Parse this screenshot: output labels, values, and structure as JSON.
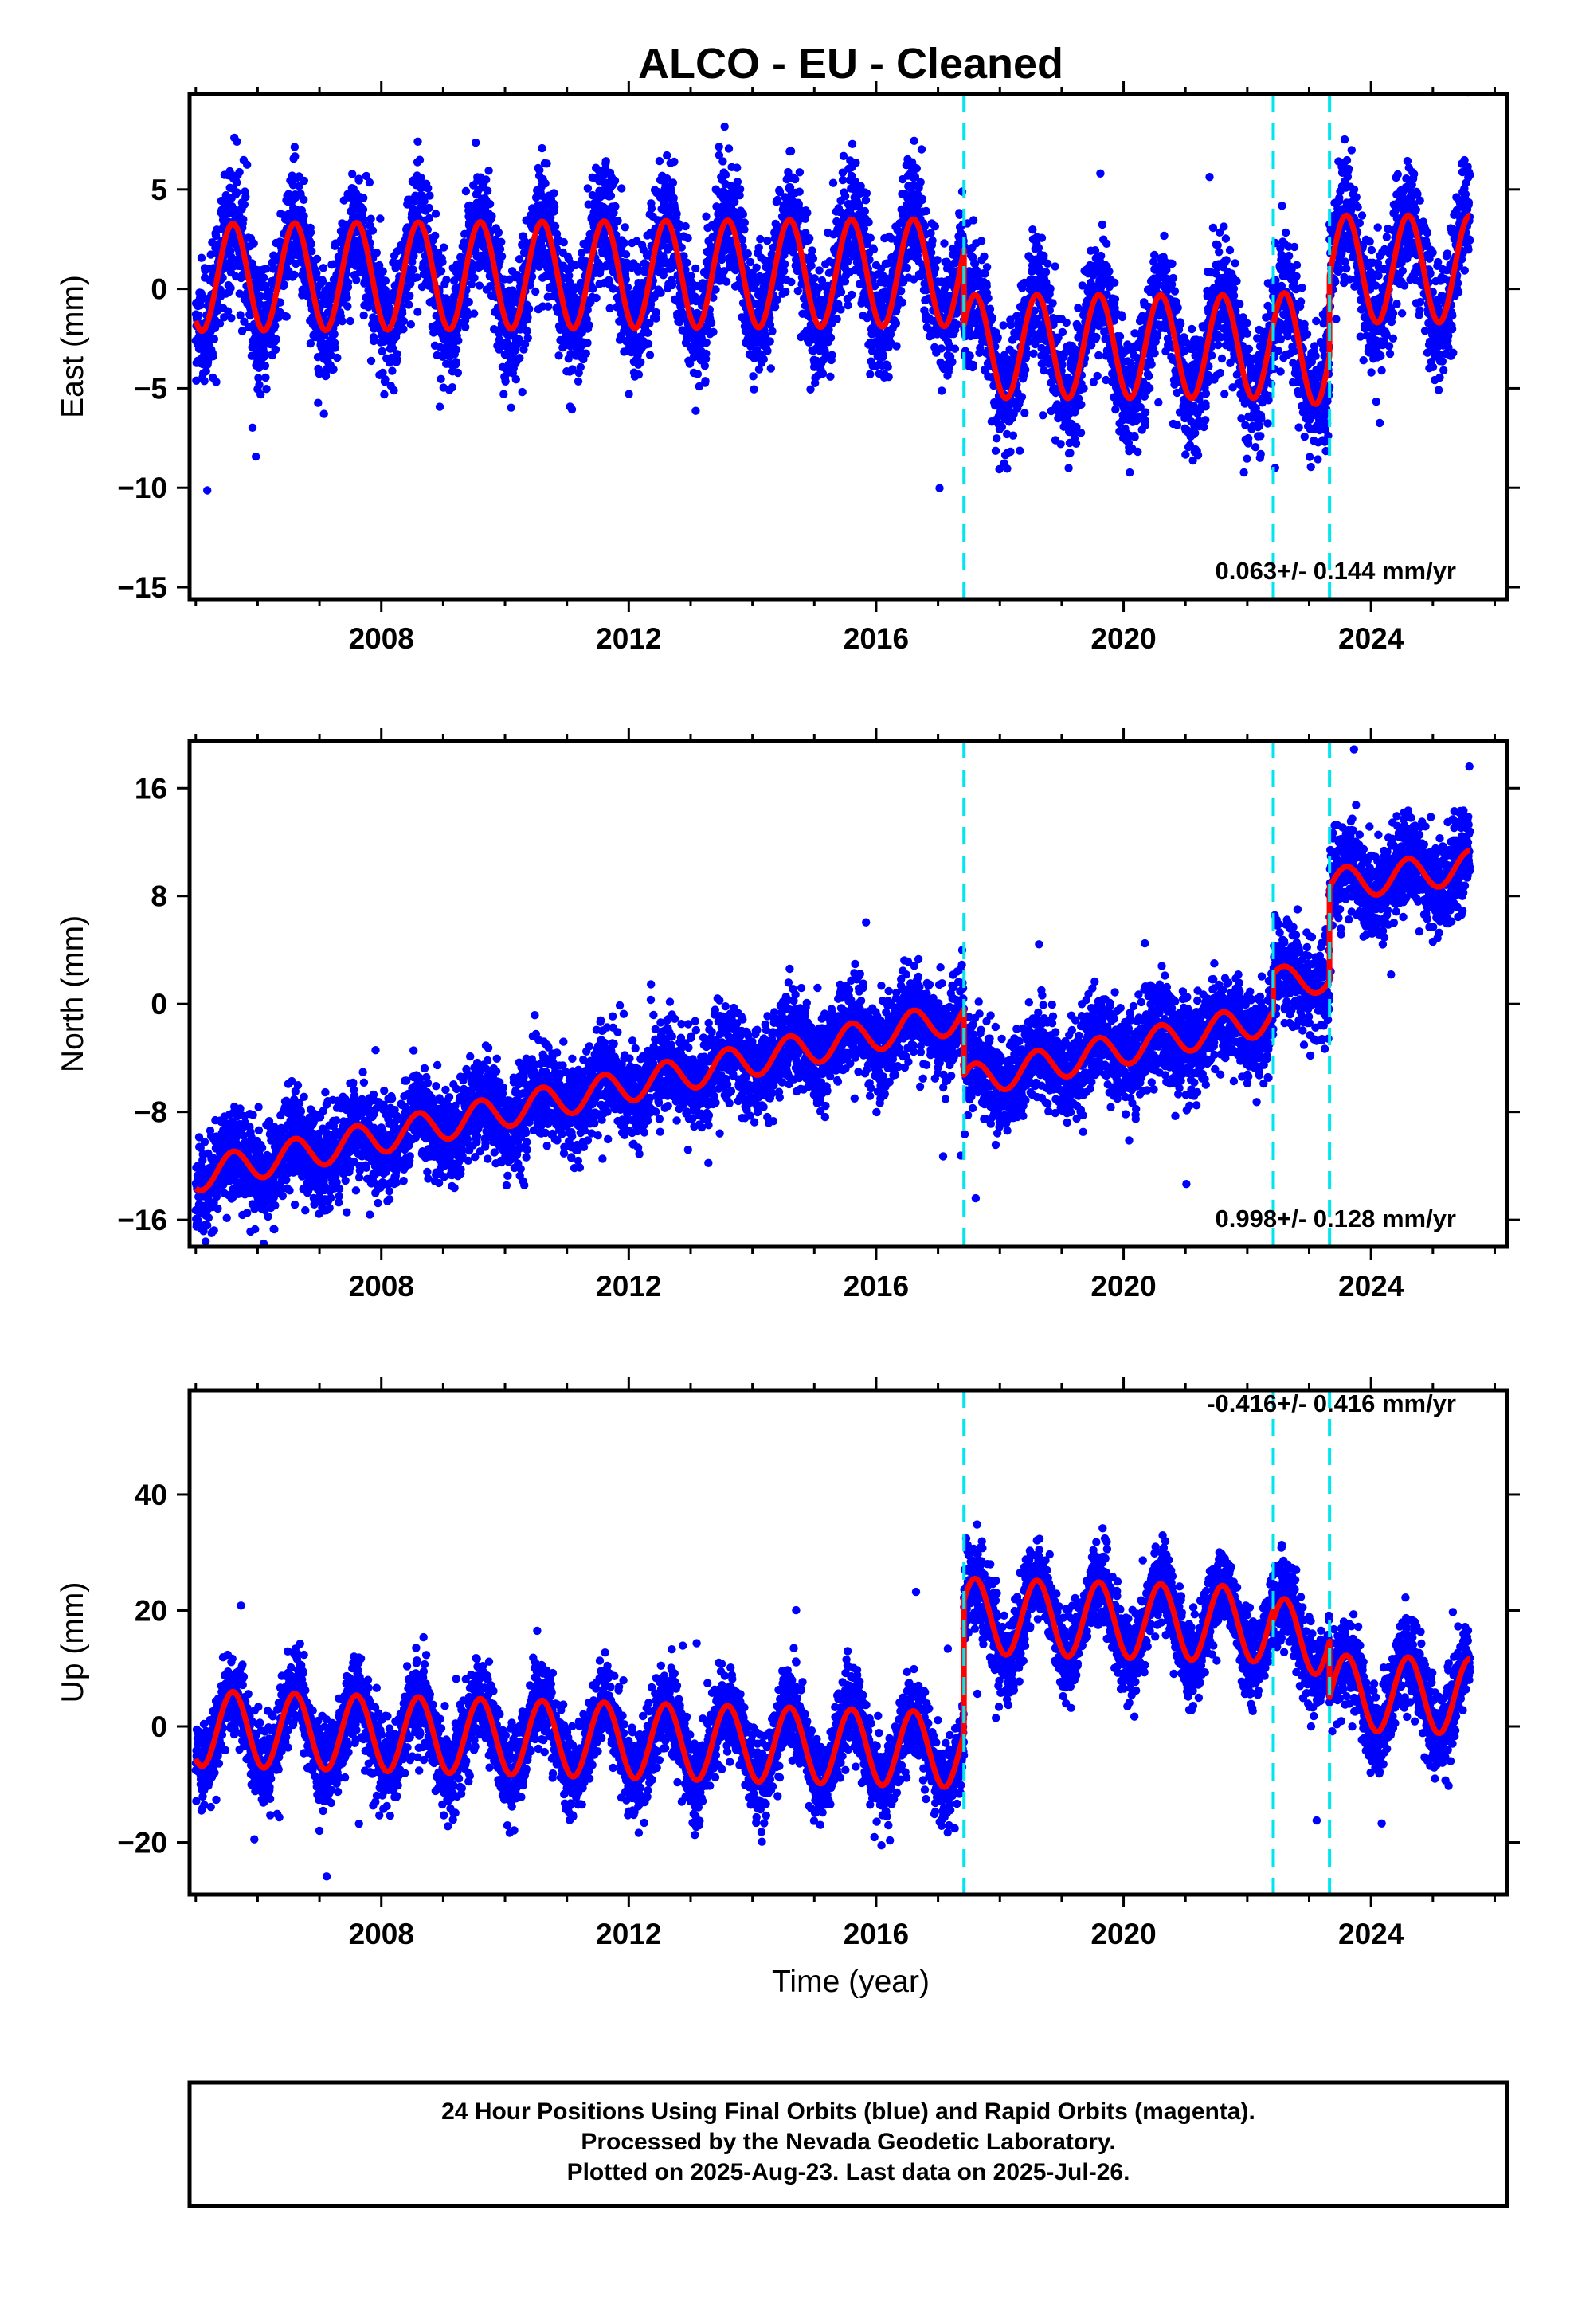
{
  "chart_data": {
    "title": "ALCO  - EU - Cleaned",
    "xlabel": "Time (year)",
    "xlim": [
      2004.9,
      2026.2
    ],
    "x_ticks": [
      2008,
      2012,
      2016,
      2020,
      2024
    ],
    "offsets": [
      2017.42,
      2022.42,
      2023.33
    ],
    "colors": {
      "points": "#0000ff",
      "model": "#ff0000",
      "offset_lines": "#00e5ee"
    },
    "panels": [
      {
        "type": "scatter",
        "ylabel": "East (mm)",
        "ylim": [
          -15.6,
          9.8
        ],
        "y_ticks": [
          -15,
          -10,
          -5,
          0,
          5
        ],
        "rate": "0.063+/- 0.144 mm/yr",
        "model_segments": [
          {
            "x0": 2005.0,
            "x1": 2017.42,
            "mean": 0.7,
            "trend": 0.02,
            "amp": 2.7
          },
          {
            "x0": 2017.42,
            "x1": 2022.42,
            "mean": -2.9,
            "trend": 0.0,
            "amp": 2.6
          },
          {
            "x0": 2022.42,
            "x1": 2023.33,
            "mean": -3.0,
            "trend": 0.0,
            "amp": 2.8
          },
          {
            "x0": 2023.33,
            "x1": 2025.6,
            "mean": 1.0,
            "trend": 0.0,
            "amp": 2.7
          }
        ]
      },
      {
        "type": "scatter",
        "ylabel": "North (mm)",
        "ylim": [
          -18,
          19.5
        ],
        "y_ticks": [
          -16,
          -8,
          0,
          8,
          16
        ],
        "rate": "0.998+/- 0.128 mm/yr",
        "model_segments": [
          {
            "x0": 2005.0,
            "x1": 2017.42,
            "mean": -6.8,
            "trend": 0.95,
            "amp": 1.2
          },
          {
            "x0": 2017.42,
            "x1": 2022.42,
            "mean": -3.4,
            "trend": 0.95,
            "amp": 1.2
          },
          {
            "x0": 2022.42,
            "x1": 2023.33,
            "mean": 1.8,
            "trend": 0.0,
            "amp": 1.0
          },
          {
            "x0": 2023.33,
            "x1": 2025.6,
            "mean": 9.5,
            "trend": 0.6,
            "amp": 1.2
          }
        ]
      },
      {
        "type": "scatter",
        "ylabel": "Up (mm)",
        "ylim": [
          -29,
          58
        ],
        "y_ticks": [
          -20,
          0,
          20,
          40
        ],
        "rate": "-0.416+/- 0.416 mm/yr",
        "model_segments": [
          {
            "x0": 2005.0,
            "x1": 2017.42,
            "mean": -2.2,
            "trend": -0.3,
            "amp": 6.5
          },
          {
            "x0": 2017.42,
            "x1": 2022.42,
            "mean": 18.3,
            "trend": -0.3,
            "amp": 6.5
          },
          {
            "x0": 2022.42,
            "x1": 2023.33,
            "mean": 15.5,
            "trend": 0.0,
            "amp": 6.5
          },
          {
            "x0": 2023.33,
            "x1": 2025.6,
            "mean": 5.5,
            "trend": -0.3,
            "amp": 6.5
          }
        ]
      }
    ],
    "footer_lines": [
      "24 Hour Positions Using Final Orbits (blue) and Rapid Orbits (magenta).",
      "Processed by the Nevada Geodetic Laboratory.",
      "Plotted on 2025-Aug-23. Last data on 2025-Jul-26."
    ]
  }
}
